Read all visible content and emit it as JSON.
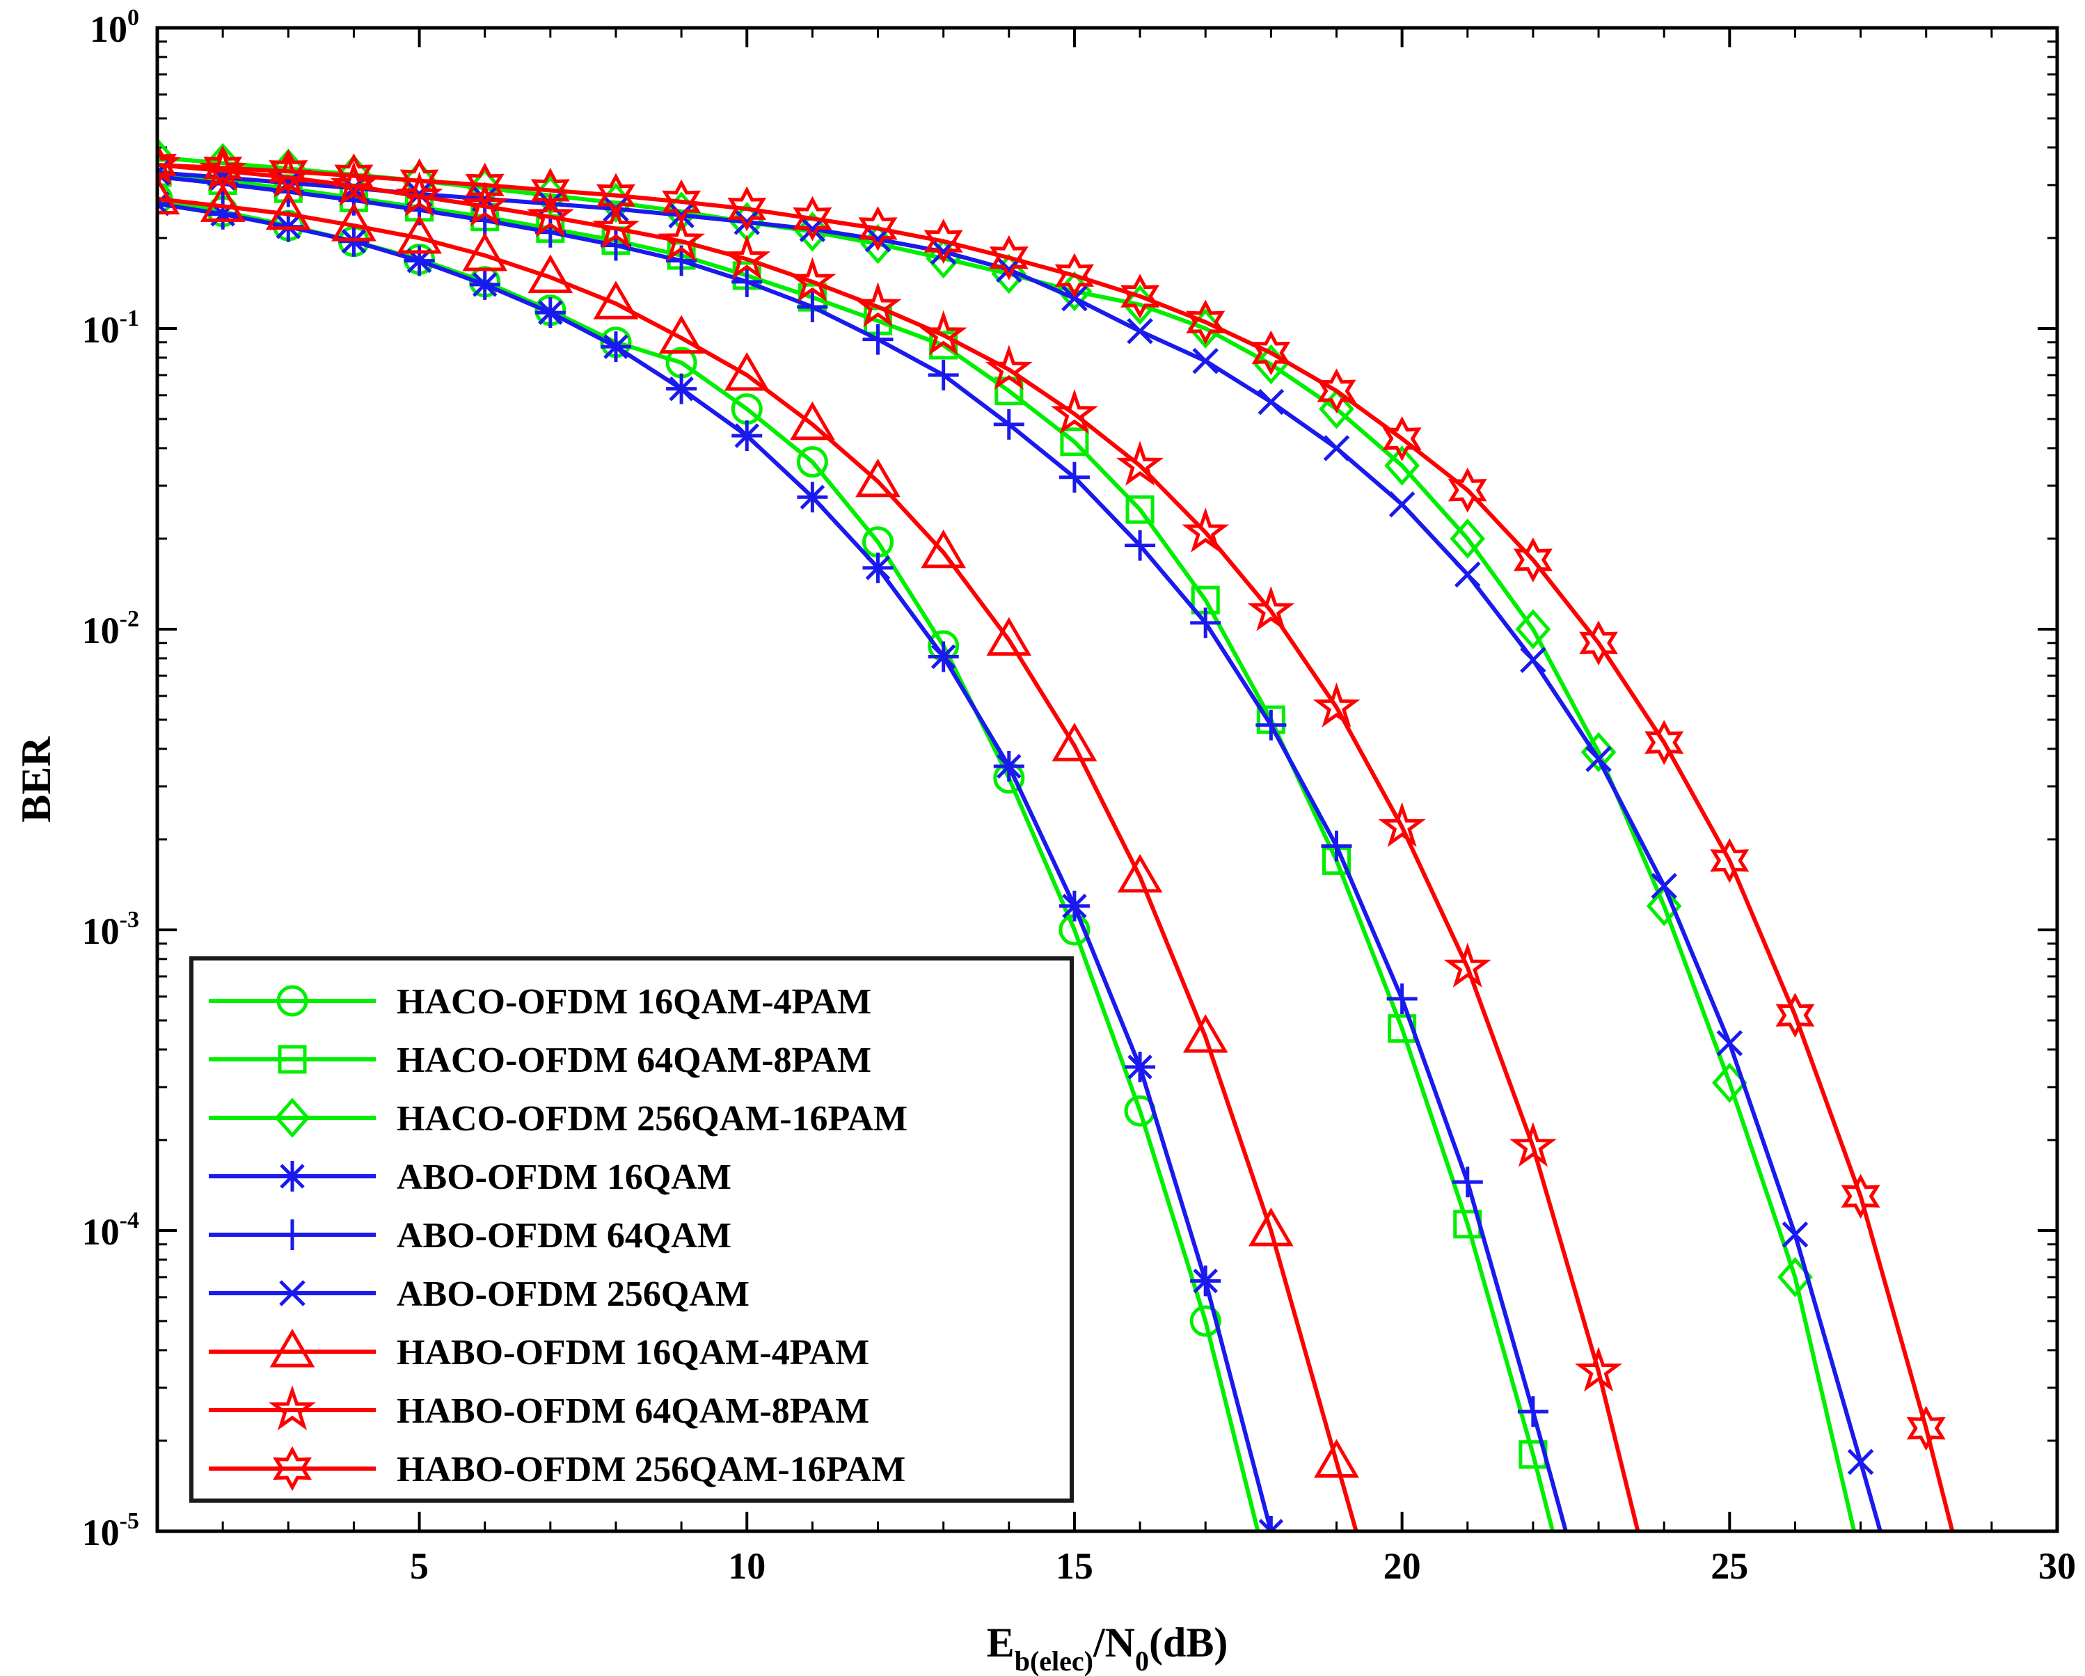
{
  "chart_data": {
    "type": "line",
    "title": "",
    "xlabel": {
      "main": "E",
      "sub": "b(elec)",
      "mid": "/N",
      "sub2": "0",
      "tail": "(dB)"
    },
    "ylabel": "BER",
    "xlim": [
      1,
      30
    ],
    "ylim": [
      1e-05,
      1
    ],
    "yscale": "log",
    "x_ticks": [
      5,
      10,
      15,
      20,
      25,
      30
    ],
    "x_tick_labels": [
      "5",
      "10",
      "15",
      "20",
      "25",
      "30"
    ],
    "y_ticks": [
      0,
      -1,
      -2,
      -3,
      -4,
      -5
    ],
    "y_tick_labels": [
      {
        "base": "10",
        "exp": "0"
      },
      {
        "base": "10",
        "exp": "-1"
      },
      {
        "base": "10",
        "exp": "-2"
      },
      {
        "base": "10",
        "exp": "-3"
      },
      {
        "base": "10",
        "exp": "-4"
      },
      {
        "base": "10",
        "exp": "-5"
      }
    ],
    "legend_position": "bottom-left",
    "series": [
      {
        "name": "HACO-OFDM 16QAM-4PAM",
        "color": "#00ee00",
        "marker": "circle",
        "x": [
          1,
          2,
          3,
          4,
          5,
          6,
          7,
          8,
          9,
          10,
          11,
          12,
          13,
          14,
          15,
          16,
          17,
          17.8
        ],
        "y": [
          0.27,
          0.245,
          0.22,
          0.195,
          0.17,
          0.143,
          0.115,
          0.09,
          0.077,
          0.054,
          0.036,
          0.0195,
          0.0088,
          0.0032,
          0.001,
          0.00025,
          5e-05,
          1e-05
        ],
        "mx": [
          1,
          2,
          3,
          4,
          5,
          6,
          7,
          8,
          9,
          10,
          11,
          12,
          13,
          14,
          15,
          16,
          17
        ]
      },
      {
        "name": "HACO-OFDM 64QAM-8PAM",
        "color": "#00ee00",
        "marker": "square",
        "x": [
          1,
          2,
          3,
          4,
          5,
          6,
          7,
          8,
          9,
          10,
          11,
          12,
          13,
          14,
          15,
          16,
          17,
          18,
          19,
          20,
          21,
          22,
          22.3
        ],
        "y": [
          0.33,
          0.31,
          0.292,
          0.272,
          0.253,
          0.235,
          0.215,
          0.196,
          0.175,
          0.15,
          0.127,
          0.106,
          0.088,
          0.062,
          0.042,
          0.025,
          0.0125,
          0.005,
          0.0017,
          0.00047,
          0.000105,
          1.8e-05,
          1e-05
        ],
        "mx": [
          1,
          2,
          3,
          4,
          5,
          6,
          7,
          8,
          9,
          10,
          11,
          12,
          13,
          14,
          15,
          16,
          17,
          18,
          19,
          20,
          21,
          22
        ]
      },
      {
        "name": "HACO-OFDM 256QAM-16PAM",
        "color": "#00ee00",
        "marker": "diamond",
        "x": [
          1,
          2,
          3,
          4,
          5,
          6,
          7,
          8,
          9,
          10,
          11,
          12,
          13,
          14,
          15,
          16,
          17,
          18,
          19,
          20,
          21,
          22,
          23,
          24,
          25,
          26,
          26.9
        ],
        "y": [
          0.37,
          0.355,
          0.34,
          0.325,
          0.31,
          0.293,
          0.277,
          0.262,
          0.245,
          0.226,
          0.21,
          0.191,
          0.171,
          0.152,
          0.133,
          0.12,
          0.1,
          0.076,
          0.054,
          0.035,
          0.02,
          0.01,
          0.0039,
          0.0012,
          0.00031,
          7e-05,
          1e-05
        ],
        "mx": [
          1,
          2,
          3,
          4,
          5,
          6,
          7,
          8,
          9,
          10,
          11,
          12,
          13,
          14,
          15,
          16,
          17,
          18,
          19,
          20,
          21,
          22,
          23,
          24,
          25,
          26
        ]
      },
      {
        "name": "ABO-OFDM 16QAM",
        "color": "#1a1aee",
        "marker": "asterisk",
        "x": [
          1,
          2,
          3,
          4,
          5,
          6,
          7,
          8,
          9,
          10,
          11,
          12,
          13,
          14,
          15,
          16,
          17,
          18
        ],
        "y": [
          0.26,
          0.24,
          0.218,
          0.195,
          0.168,
          0.14,
          0.113,
          0.087,
          0.063,
          0.044,
          0.0275,
          0.016,
          0.0081,
          0.0035,
          0.0012,
          0.00035,
          6.8e-05,
          1e-05
        ],
        "mx": [
          1,
          2,
          3,
          4,
          5,
          6,
          7,
          8,
          9,
          10,
          11,
          12,
          13,
          14,
          15,
          16,
          17,
          18
        ]
      },
      {
        "name": "ABO-OFDM 64QAM",
        "color": "#1a1aee",
        "marker": "plus",
        "x": [
          1,
          2,
          3,
          4,
          5,
          6,
          7,
          8,
          9,
          10,
          11,
          12,
          13,
          14,
          15,
          16,
          17,
          18,
          19,
          20,
          21,
          22,
          22.5
        ],
        "y": [
          0.32,
          0.303,
          0.285,
          0.267,
          0.248,
          0.229,
          0.209,
          0.189,
          0.168,
          0.143,
          0.118,
          0.092,
          0.07,
          0.048,
          0.032,
          0.019,
          0.0105,
          0.0048,
          0.0019,
          0.00059,
          0.000145,
          2.5e-05,
          1e-05
        ],
        "mx": [
          1,
          2,
          3,
          4,
          5,
          6,
          7,
          8,
          9,
          10,
          11,
          12,
          13,
          14,
          15,
          16,
          17,
          18,
          19,
          20,
          21,
          22
        ]
      },
      {
        "name": "ABO-OFDM 256QAM",
        "color": "#1a1aee",
        "marker": "x",
        "x": [
          1,
          2,
          3,
          4,
          5,
          6,
          7,
          8,
          9,
          10,
          11,
          12,
          13,
          14,
          15,
          16,
          17,
          18,
          19,
          20,
          21,
          22,
          23,
          24,
          25,
          26,
          27,
          27.3
        ],
        "y": [
          0.33,
          0.318,
          0.305,
          0.293,
          0.28,
          0.27,
          0.26,
          0.25,
          0.238,
          0.226,
          0.214,
          0.198,
          0.18,
          0.157,
          0.126,
          0.098,
          0.078,
          0.057,
          0.04,
          0.026,
          0.0152,
          0.0079,
          0.0037,
          0.0014,
          0.00042,
          9.7e-05,
          1.7e-05,
          1e-05
        ],
        "mx": [
          1,
          2,
          3,
          4,
          5,
          6,
          7,
          8,
          9,
          10,
          11,
          12,
          13,
          14,
          15,
          16,
          17,
          18,
          19,
          20,
          21,
          22,
          23,
          24,
          25,
          26,
          27
        ]
      },
      {
        "name": "HABO-OFDM 16QAM-4PAM",
        "color": "#ff0000",
        "marker": "triangle",
        "x": [
          1,
          2,
          3,
          4,
          5,
          6,
          7,
          8,
          9,
          10,
          11,
          12,
          13,
          14,
          15,
          16,
          17,
          18,
          19,
          19.3
        ],
        "y": [
          0.27,
          0.255,
          0.24,
          0.22,
          0.2,
          0.175,
          0.148,
          0.121,
          0.093,
          0.07,
          0.048,
          0.031,
          0.018,
          0.0092,
          0.0041,
          0.0015,
          0.00044,
          0.0001,
          1.7e-05,
          1e-05
        ],
        "mx": [
          1,
          2,
          3,
          4,
          5,
          6,
          7,
          8,
          9,
          10,
          11,
          12,
          13,
          14,
          15,
          16,
          17,
          18,
          19
        ]
      },
      {
        "name": "HABO-OFDM 64QAM-8PAM",
        "color": "#ff0000",
        "marker": "star5",
        "x": [
          1,
          2,
          3,
          4,
          5,
          6,
          7,
          8,
          9,
          10,
          11,
          12,
          13,
          14,
          15,
          16,
          17,
          18,
          19,
          20,
          21,
          22,
          23,
          23.6
        ],
        "y": [
          0.35,
          0.335,
          0.318,
          0.298,
          0.275,
          0.255,
          0.235,
          0.215,
          0.195,
          0.17,
          0.143,
          0.118,
          0.095,
          0.073,
          0.052,
          0.035,
          0.021,
          0.0115,
          0.0055,
          0.0022,
          0.00075,
          0.00019,
          3.4e-05,
          1e-05
        ],
        "mx": [
          1,
          2,
          3,
          4,
          5,
          6,
          7,
          8,
          9,
          10,
          11,
          12,
          13,
          14,
          15,
          16,
          17,
          18,
          19,
          20,
          21,
          22,
          23
        ]
      },
      {
        "name": "HABO-OFDM 256QAM-16PAM",
        "color": "#ff0000",
        "marker": "star6",
        "x": [
          1,
          2,
          3,
          4,
          5,
          6,
          7,
          8,
          9,
          10,
          11,
          12,
          13,
          14,
          15,
          16,
          17,
          18,
          19,
          20,
          21,
          22,
          23,
          24,
          25,
          26,
          27,
          28,
          28.4
        ],
        "y": [
          0.35,
          0.342,
          0.333,
          0.322,
          0.31,
          0.3,
          0.288,
          0.277,
          0.264,
          0.25,
          0.232,
          0.215,
          0.195,
          0.172,
          0.15,
          0.128,
          0.105,
          0.083,
          0.062,
          0.043,
          0.029,
          0.017,
          0.009,
          0.0042,
          0.0017,
          0.00052,
          0.00013,
          2.2e-05,
          1e-05
        ],
        "mx": [
          1,
          2,
          3,
          4,
          5,
          6,
          7,
          8,
          9,
          10,
          11,
          12,
          13,
          14,
          15,
          16,
          17,
          18,
          19,
          20,
          21,
          22,
          23,
          24,
          25,
          26,
          27,
          28
        ]
      }
    ]
  }
}
